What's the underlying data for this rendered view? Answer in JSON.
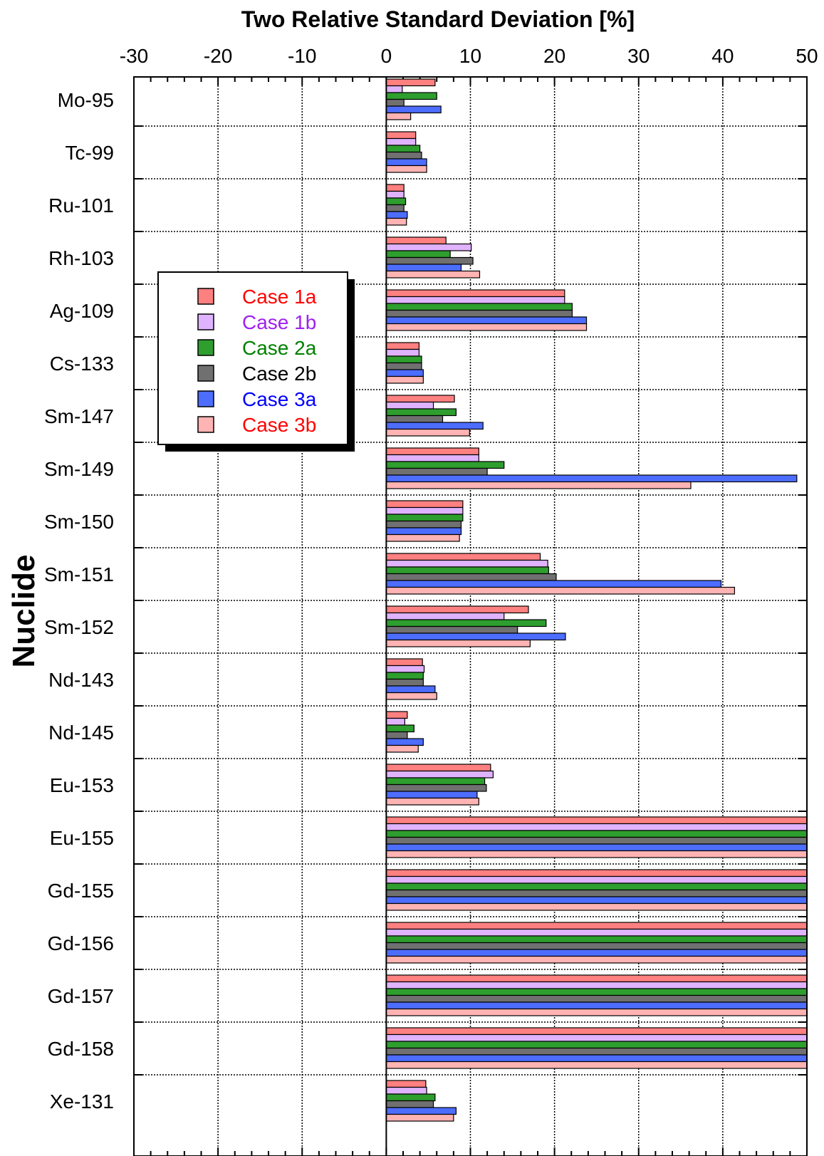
{
  "chart_data": {
    "type": "bar",
    "orientation": "horizontal",
    "title": "Two Relative Standard Deviation [%]",
    "xlabel": "Two Relative Standard Deviation [%]",
    "ylabel": "Nuclide",
    "xlim": [
      -30,
      50
    ],
    "xticks": [
      "-30",
      "-20",
      "-10",
      "0",
      "10",
      "20",
      "30",
      "40",
      "50"
    ],
    "grid": true,
    "legend_position": "upper-left",
    "categories": [
      "Mo-95",
      "Tc-99",
      "Ru-101",
      "Rh-103",
      "Ag-109",
      "Cs-133",
      "Sm-147",
      "Sm-149",
      "Sm-150",
      "Sm-151",
      "Sm-152",
      "Nd-143",
      "Nd-145",
      "Eu-153",
      "Eu-155",
      "Gd-155",
      "Gd-156",
      "Gd-157",
      "Gd-158",
      "Xe-131"
    ],
    "series": [
      {
        "name": "Case 1a",
        "color": "#ff8080",
        "label_color": "#ff0000",
        "values": [
          5.8,
          3.5,
          2.1,
          7.1,
          21.2,
          3.9,
          8.1,
          11.0,
          9.1,
          18.3,
          16.9,
          4.3,
          2.5,
          12.4,
          50,
          50,
          50,
          50,
          50,
          4.7
        ]
      },
      {
        "name": "Case 1b",
        "color": "#e0b3ff",
        "label_color": "#a020f0",
        "values": [
          1.9,
          3.5,
          2.1,
          10.1,
          21.2,
          3.9,
          5.6,
          11.0,
          9.1,
          19.2,
          14.0,
          4.5,
          2.2,
          12.7,
          50,
          50,
          50,
          50,
          50,
          4.8
        ]
      },
      {
        "name": "Case 2a",
        "color": "#2e9e2e",
        "label_color": "#008000",
        "values": [
          6.0,
          4.0,
          2.3,
          7.6,
          22.1,
          4.2,
          8.3,
          14.0,
          9.1,
          19.3,
          19.0,
          4.4,
          3.3,
          11.7,
          50,
          50,
          50,
          50,
          50,
          5.8
        ]
      },
      {
        "name": "Case 2b",
        "color": "#707070",
        "label_color": "#000000",
        "values": [
          2.1,
          4.2,
          2.1,
          10.3,
          22.1,
          4.2,
          6.7,
          12.0,
          8.9,
          20.2,
          15.6,
          4.4,
          2.5,
          11.9,
          50,
          50,
          50,
          50,
          50,
          5.6
        ]
      },
      {
        "name": "Case 3a",
        "color": "#4d6dff",
        "label_color": "#0000ff",
        "values": [
          6.5,
          4.8,
          2.5,
          8.9,
          23.8,
          4.4,
          11.5,
          48.8,
          8.9,
          39.8,
          21.3,
          5.8,
          4.4,
          10.8,
          50,
          50,
          50,
          50,
          50,
          8.3
        ]
      },
      {
        "name": "Case 3b",
        "color": "#ffb3b3",
        "label_color": "#ff0000",
        "values": [
          2.9,
          4.8,
          2.4,
          11.1,
          23.8,
          4.4,
          9.9,
          36.2,
          8.7,
          41.4,
          17.1,
          6.0,
          3.8,
          11.0,
          50,
          50,
          50,
          50,
          50,
          8.0
        ]
      }
    ]
  }
}
